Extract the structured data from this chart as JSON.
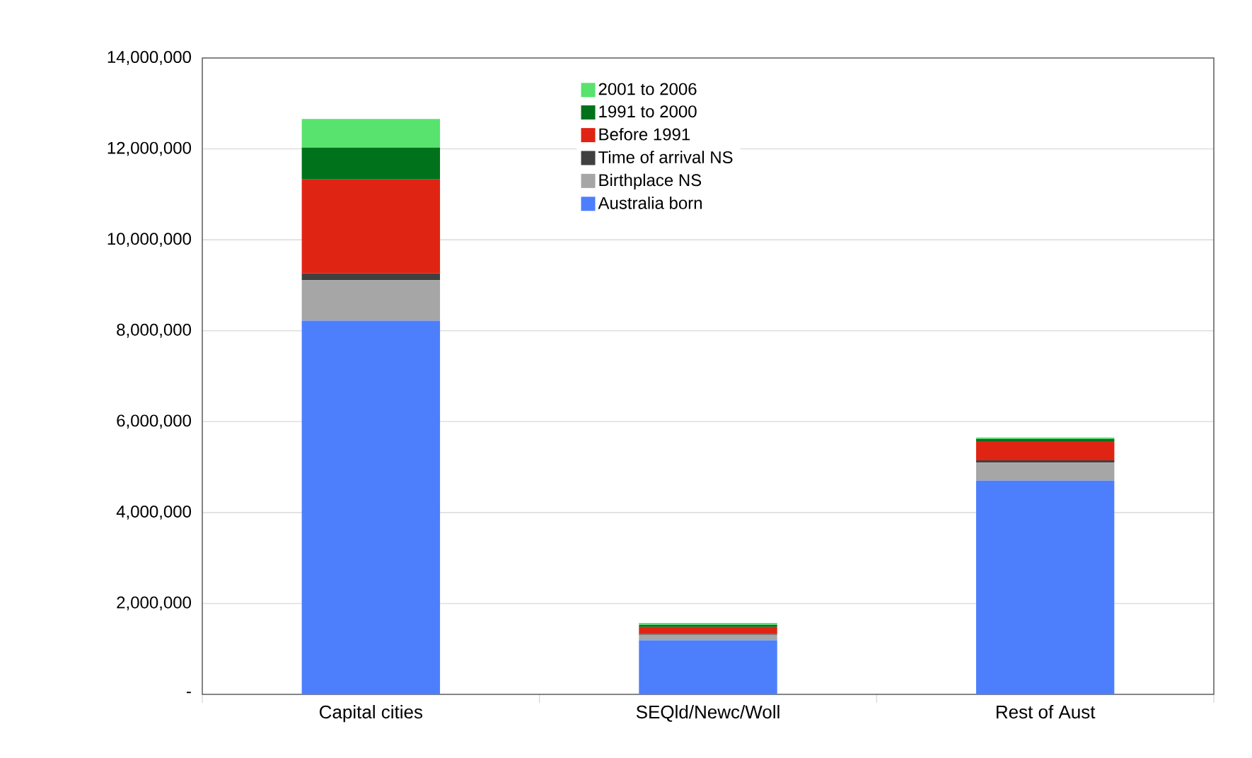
{
  "chart_data": {
    "type": "bar",
    "stacked": true,
    "categories": [
      "Capital cities",
      "SEQld/Newc/Woll",
      "Rest  of Aust"
    ],
    "series": [
      {
        "name": "Australia born",
        "color": "#4d7ffd",
        "values": [
          8220000,
          1190000,
          4700000
        ]
      },
      {
        "name": "Birthplace NS",
        "color": "#a6a6a6",
        "values": [
          890000,
          120000,
          400000
        ]
      },
      {
        "name": "Time of arrival NS",
        "color": "#404040",
        "values": [
          150000,
          20000,
          50000
        ]
      },
      {
        "name": "Before 1991",
        "color": "#e02414",
        "values": [
          2070000,
          150000,
          420000
        ]
      },
      {
        "name": "1991 to 2000",
        "color": "#00721c",
        "values": [
          700000,
          50000,
          50000
        ]
      },
      {
        "name": "2001 to 2006",
        "color": "#58e26e",
        "values": [
          630000,
          40000,
          30000
        ]
      }
    ],
    "ylim": [
      0,
      14000000
    ],
    "yticks": [
      {
        "value": 0,
        "label": "-"
      },
      {
        "value": 2000000,
        "label": "2,000,000"
      },
      {
        "value": 4000000,
        "label": "4,000,000"
      },
      {
        "value": 6000000,
        "label": "6,000,000"
      },
      {
        "value": 8000000,
        "label": "8,000,000"
      },
      {
        "value": 10000000,
        "label": "10,000,000"
      },
      {
        "value": 12000000,
        "label": "12,000,000"
      },
      {
        "value": 14000000,
        "label": "14,000,000"
      }
    ],
    "grid": "y",
    "legend": "top"
  }
}
